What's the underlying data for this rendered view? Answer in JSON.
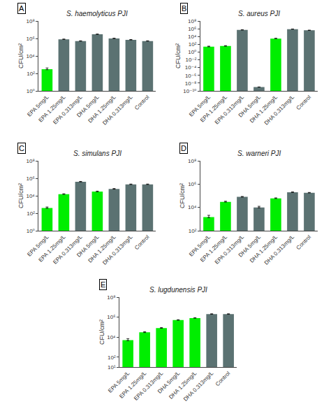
{
  "chart_data": [
    {
      "type": "bar",
      "title": "S. haemolyticus PJI",
      "annotation": "A",
      "y_label": "CFU/cm²",
      "categories": [
        "EPA 5mg/L",
        "EPA 1.25mg/L",
        "EPA 0.313mg/L",
        "DHA 5mg/L",
        "DHA 1.25mg/L",
        "DHA 0.313mg/L",
        "Control"
      ],
      "values": [
        300.0,
        800000.0,
        500000.0,
        3000000.0,
        1000000.0,
        700000.0,
        500000.0
      ],
      "errors": [
        120.0,
        50000.0,
        40000.0,
        200000.0,
        60000.0,
        50000.0,
        40000.0
      ],
      "errors_minus": [
        36,
        15000,
        12000,
        60000,
        18000,
        15000,
        12000
      ],
      "colors": [
        "#00ee00",
        "#5b7272",
        "#5b7272",
        "#5b7272",
        "#5b7272",
        "#5b7272",
        "#5b7272"
      ],
      "log": "y",
      "grid": false,
      "ylim": [
        1.0,
        100000000.0
      ],
      "yticks": [
        {
          "value": 1.0,
          "label": "10⁰"
        },
        {
          "value": 100.0,
          "label": "10²"
        },
        {
          "value": 10000.0,
          "label": "10⁴"
        },
        {
          "value": 1000000.0,
          "label": "10⁶"
        },
        {
          "value": 100000000.0,
          "label": "10⁸"
        }
      ]
    },
    {
      "type": "bar",
      "title": "S. aureus PJI",
      "annotation": "B",
      "y_label": "CFU/cm²",
      "categories": [
        "EPA 5mg/L",
        "EPA 1.25mg/L",
        "EPA 0.313mg/L",
        "DHA 5mg/L",
        "DHA 1.25mg/L",
        "DHA 0.313mg/L",
        "Control"
      ],
      "values": [
        25.0,
        35.0,
        500000.0,
        1e-09,
        3000.0,
        800000.0,
        400000.0
      ],
      "errors": [
        8.0,
        10.0,
        30000.0,
        0,
        500.0,
        50000.0,
        30000.0
      ],
      "errors_minus": [
        2.4,
        3,
        9000,
        0,
        150,
        15000,
        9000
      ],
      "colors": [
        "#00ee00",
        "#00ee00",
        "#5b7272",
        "#5b7272",
        "#00ee00",
        "#5b7272",
        "#5b7272"
      ],
      "log": "y",
      "grid": false,
      "ylim": [
        1e-10,
        100000000.0
      ],
      "yticks": [
        {
          "value": 1e-10,
          "label": "10⁻¹⁰"
        },
        {
          "value": 1e-08,
          "label": "10⁻⁸"
        },
        {
          "value": 1e-06,
          "label": "10⁻⁶"
        },
        {
          "value": 0.0001,
          "label": "10⁻⁴"
        },
        {
          "value": 0.01,
          "label": "10⁻²"
        },
        {
          "value": 1.0,
          "label": "10⁰"
        },
        {
          "value": 100.0,
          "label": "10²"
        },
        {
          "value": 10000.0,
          "label": "10⁴"
        },
        {
          "value": 1000000.0,
          "label": "10⁶"
        },
        {
          "value": 100000000.0,
          "label": "10⁸"
        }
      ]
    },
    {
      "type": "bar",
      "title": "S. simulans PJI",
      "annotation": "C",
      "y_label": "CFU/cm²",
      "categories": [
        "EPA 5mg/L",
        "EPA 1.25mg/L",
        "EPA 0.313mg/L",
        "DHA 5mg/L",
        "DHA 1.25mg/L",
        "DHA 0.313mg/L",
        "Control"
      ],
      "values": [
        400.0,
        15000.0,
        400000.0,
        30000.0,
        60000.0,
        200000.0,
        200000.0
      ],
      "errors": [
        120.0,
        2000.0,
        40000.0,
        4000.0,
        7000.0,
        20000.0,
        20000.0
      ],
      "errors_minus": [
        36,
        600,
        12000,
        1200,
        2100,
        6000,
        6000
      ],
      "colors": [
        "#00ee00",
        "#00ee00",
        "#5b7272",
        "#00ee00",
        "#5b7272",
        "#5b7272",
        "#5b7272"
      ],
      "log": "y",
      "grid": false,
      "ylim": [
        1.0,
        100000000.0
      ],
      "yticks": [
        {
          "value": 1.0,
          "label": "10⁰"
        },
        {
          "value": 100.0,
          "label": "10²"
        },
        {
          "value": 10000.0,
          "label": "10⁴"
        },
        {
          "value": 1000000.0,
          "label": "10⁶"
        },
        {
          "value": 100000000.0,
          "label": "10⁸"
        }
      ]
    },
    {
      "type": "bar",
      "title": "S. warneri PJI",
      "annotation": "D",
      "y_label": "CFU/cm²",
      "categories": [
        "EPA 5mg/L",
        "EPA 1.25mg/L",
        "EPA 0.313mg/L",
        "DHA 5mg/L",
        "DHA 1.25mg/L",
        "DHA 0.313mg/L",
        "Control"
      ],
      "values": [
        1500.0,
        30000.0,
        80000.0,
        10000.0,
        60000.0,
        200000.0,
        180000.0
      ],
      "errors": [
        600.0,
        4000.0,
        7000.0,
        2500.0,
        6000.0,
        15000.0,
        12000.0
      ],
      "errors_minus": [
        180,
        1200,
        2100,
        750,
        1800,
        4500,
        3600
      ],
      "colors": [
        "#00ee00",
        "#00ee00",
        "#5b7272",
        "#5b7272",
        "#00ee00",
        "#5b7272",
        "#5b7272"
      ],
      "log": "y",
      "grid": false,
      "ylim": [
        100.0,
        100000000.0
      ],
      "yticks": [
        {
          "value": 100.0,
          "label": "10²"
        },
        {
          "value": 10000.0,
          "label": "10⁴"
        },
        {
          "value": 1000000.0,
          "label": "10⁶"
        },
        {
          "value": 100000000.0,
          "label": "10⁸"
        }
      ]
    },
    {
      "type": "bar",
      "title": "S. lugdunensis PJI",
      "annotation": "E",
      "y_label": "CFU/cm²",
      "categories": [
        "EPA 5mg/L",
        "EPA 1.25mg/L",
        "EPA 0.313mg/L",
        "DHA 5mg/L",
        "DHA 1.25mg/L",
        "DHA 0.313mg/L",
        "Control"
      ],
      "values": [
        5000.0,
        30000.0,
        80000.0,
        500000.0,
        800000.0,
        2000000.0,
        2000000.0
      ],
      "errors": [
        2000.0,
        5000.0,
        9000.0,
        50000.0,
        70000.0,
        150000.0,
        150000.0
      ],
      "errors_minus": [
        600,
        1500,
        2700,
        15000,
        21000,
        45000,
        45000
      ],
      "colors": [
        "#00ee00",
        "#00ee00",
        "#00ee00",
        "#00ee00",
        "#00ee00",
        "#5b7272",
        "#5b7272"
      ],
      "log": "y",
      "grid": false,
      "ylim": [
        10.0,
        100000000.0
      ],
      "yticks": [
        {
          "value": 10.0,
          "label": "10¹"
        },
        {
          "value": 100.0,
          "label": "10²"
        },
        {
          "value": 10000.0,
          "label": "10⁴"
        },
        {
          "value": 1000000.0,
          "label": "10⁶"
        },
        {
          "value": 100000000.0,
          "label": "10⁸"
        }
      ]
    }
  ]
}
